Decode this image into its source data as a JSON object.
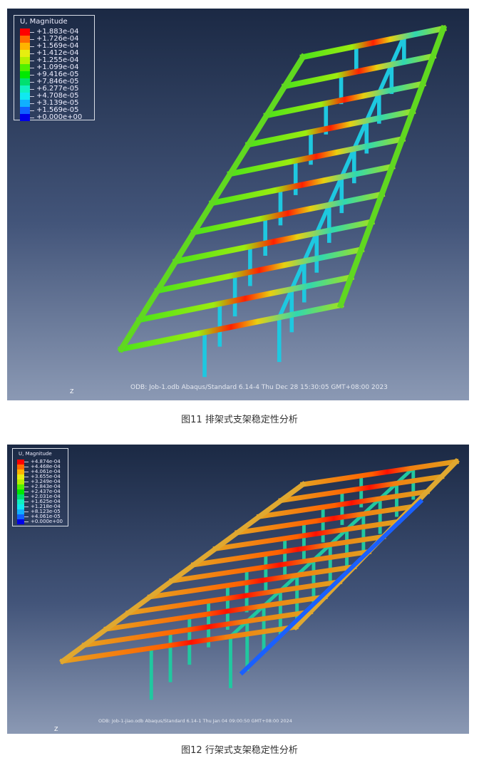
{
  "figure1": {
    "legend_title": "U, Magnitude",
    "legend_values": [
      "+1.883e-04",
      "+1.726e-04",
      "+1.569e-04",
      "+1.412e-04",
      "+1.255e-04",
      "+1.099e-04",
      "+9.416e-05",
      "+7.846e-05",
      "+6.277e-05",
      "+4.708e-05",
      "+3.139e-05",
      "+1.569e-05",
      "+0.000e+00"
    ],
    "legend_colors": [
      "#ff0000",
      "#ff6a00",
      "#ffb400",
      "#e6ee10",
      "#b4f000",
      "#50f000",
      "#00e800",
      "#00e070",
      "#10f0c0",
      "#10e8f0",
      "#10b0ff",
      "#1060ff",
      "#0000e8"
    ],
    "footer": "ODB: Job-1.odb     Abaqus/Standard 6.14-4     Thu Dec 28 15:30:05 GMT+08:00 2023",
    "axis_label": "Z",
    "caption": "图11 排架式支架稳定性分析"
  },
  "figure2": {
    "legend_title": "U, Magnitude",
    "legend_values": [
      "+4.874e-04",
      "+4.468e-04",
      "+4.061e-04",
      "+3.655e-04",
      "+3.249e-04",
      "+2.843e-04",
      "+2.437e-04",
      "+2.031e-04",
      "+1.625e-04",
      "+1.218e-04",
      "+8.123e-05",
      "+4.061e-05",
      "+0.000e+00"
    ],
    "legend_colors": [
      "#ff0000",
      "#ff6a00",
      "#ffb400",
      "#e6ee10",
      "#b4f000",
      "#50f000",
      "#00e800",
      "#00e070",
      "#10f0c0",
      "#10e8f0",
      "#10b0ff",
      "#1060ff",
      "#0000e8"
    ],
    "footer": "ODB: Job-1-jiao.odb     Abaqus/Standard 6.14-1     Thu Jan 04 09:00:50 GMT+08:00 2024",
    "axis_label": "Z",
    "caption": "图12 行架式支架稳定性分析"
  }
}
